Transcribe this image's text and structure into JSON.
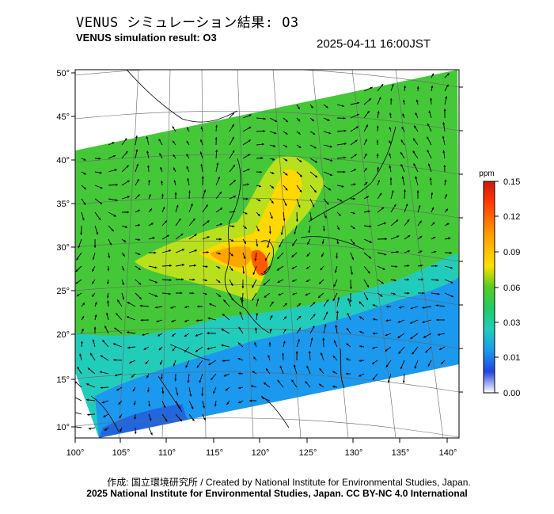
{
  "header": {
    "title_ja": "VENUS シミュレーション結果: O3",
    "title_en": "VENUS simulation result: O3",
    "timestamp": "2025-04-11 16:00JST"
  },
  "map": {
    "lat_ticks": [
      "50°",
      "45°",
      "40°",
      "35°",
      "30°",
      "25°",
      "20°",
      "15°",
      "10°"
    ],
    "lon_ticks": [
      "100°",
      "105°",
      "110°",
      "115°",
      "120°",
      "125°",
      "130°",
      "135°",
      "140°"
    ]
  },
  "colorbar": {
    "unit": "ppm",
    "ticks": [
      "0.15",
      "0.12",
      "0.09",
      "0.06",
      "0.03",
      "0.01",
      "0.00"
    ],
    "colors": [
      "#cc1a10",
      "#ff3a00",
      "#ff9d00",
      "#ffd800",
      "#c9e81c",
      "#55cc22",
      "#22cc44",
      "#22cc99",
      "#22bbee",
      "#1a88ee",
      "#2244dd",
      "#ffffff"
    ]
  },
  "footer": {
    "credit_line": "作成: 国立環境研究所 / Created by National Institute for Environmental Studies, Japan.",
    "license_line": "2025 National Institute for Environmental Studies, Japan. CC BY-NC 4.0 International"
  }
}
